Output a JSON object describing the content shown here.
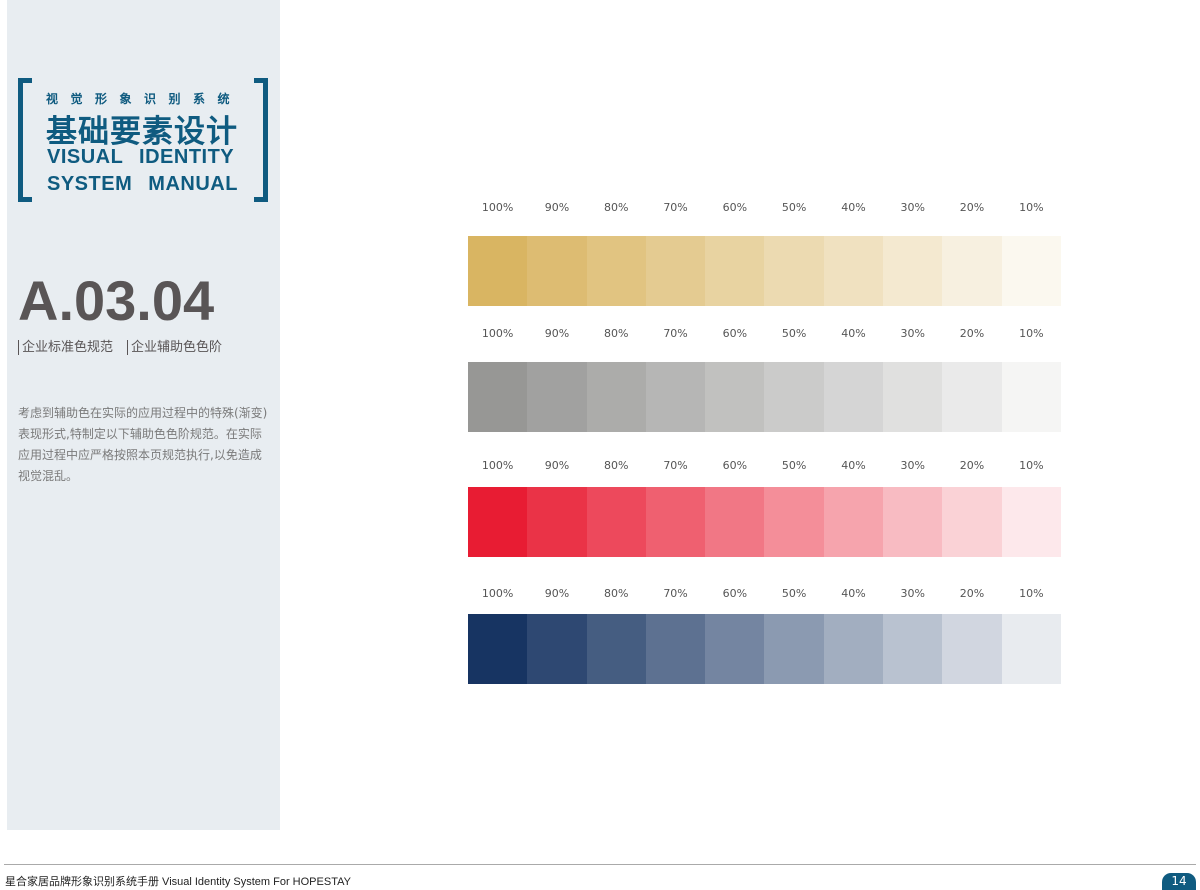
{
  "sidebar": {
    "subtitle": "视觉形象识别系统",
    "title": "基础要素设计",
    "en_line1": "VISUAL IDENTITY",
    "en_line2": "SYSTEM MANUAL",
    "code": "A.03.04",
    "tag1": "企业标准色规范",
    "tag2": "企业辅助色色阶",
    "description": "考虑到辅助色在实际的应用过程中的特殊(渐变)表现形式,特制定以下辅助色色阶规范。在实际应用过程中应严格按照本页规范执行,以免造成视觉混乱。"
  },
  "tint_labels": [
    "100%",
    "90%",
    "80%",
    "70%",
    "60%",
    "50%",
    "40%",
    "30%",
    "20%",
    "10%"
  ],
  "tints": [
    1,
    0.9,
    0.8,
    0.7,
    0.6,
    0.5,
    0.4,
    0.3,
    0.2,
    0.1
  ],
  "ramps": [
    {
      "color": "#d9b562"
    },
    {
      "color": "#979795"
    },
    {
      "color": "#e81c33"
    },
    {
      "color": "#173462"
    }
  ],
  "footer": {
    "text": "星合家居品牌形象识别系统手册  Visual Identity System For HOPESTAY",
    "page": "14"
  },
  "colors": {
    "brand": "#0f5b80",
    "sidebar_bg": "#e8edf1"
  }
}
